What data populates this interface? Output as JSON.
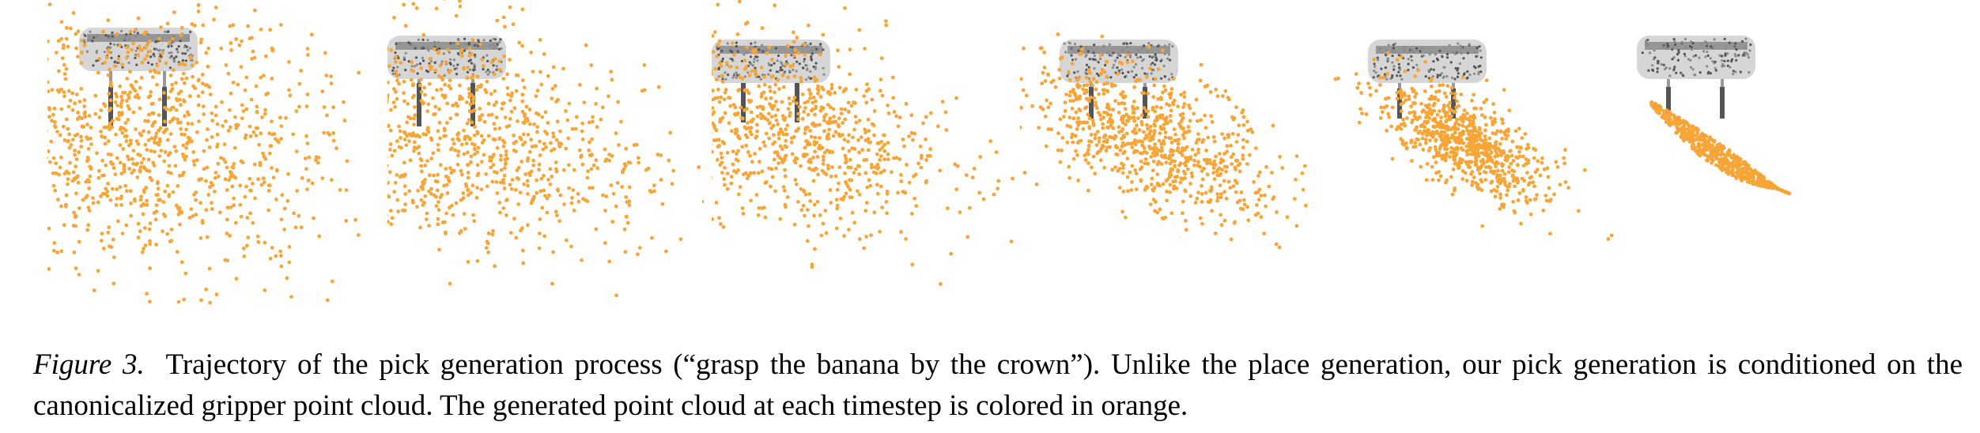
{
  "figure": {
    "label": "Figure 3.",
    "caption": "Trajectory of the pick generation process (“grasp the banana by the crown”). Unlike the place generation, our pick generation is conditioned on the canonicalized gripper point cloud. The generated point cloud at each timestep is colored in orange."
  },
  "panels": [
    {
      "step": 1,
      "stage": "noise",
      "spread": 1.0
    },
    {
      "step": 2,
      "stage": "denoising",
      "spread": 0.8
    },
    {
      "step": 3,
      "stage": "denoising",
      "spread": 0.62
    },
    {
      "step": 4,
      "stage": "denoising",
      "spread": 0.45
    },
    {
      "step": 5,
      "stage": "denoising",
      "spread": 0.25
    },
    {
      "step": 6,
      "stage": "final-banana",
      "spread": 0.05
    }
  ],
  "colors": {
    "generated_points": "#f7a537",
    "gripper_dark": "#555555",
    "gripper_light": "#b5b5b5",
    "background": "#ffffff"
  }
}
